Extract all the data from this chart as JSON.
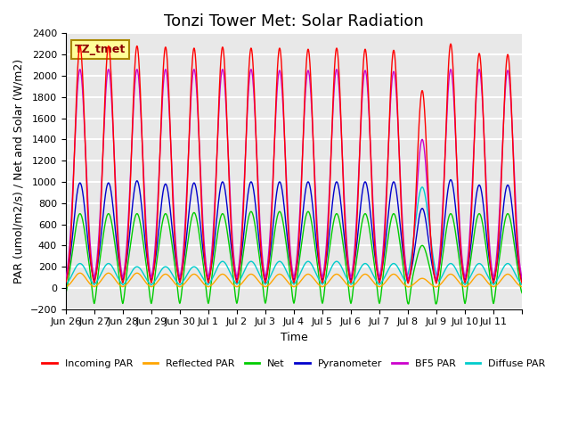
{
  "title": "Tonzi Tower Met: Solar Radiation",
  "ylabel": "PAR (umol/m2/s) / Net and Solar (W/m2)",
  "xlabel": "Time",
  "ylim": [
    -200,
    2400
  ],
  "annotation_text": "TZ_tmet",
  "annotation_color": "#8B0000",
  "annotation_bg": "#FFFF99",
  "background_color": "#E8E8E8",
  "grid_color": "#FFFFFF",
  "series": {
    "incoming_par": {
      "label": "Incoming PAR",
      "color": "#FF0000"
    },
    "reflected_par": {
      "label": "Reflected PAR",
      "color": "#FFA500"
    },
    "net": {
      "label": "Net",
      "color": "#00CC00"
    },
    "pyranometer": {
      "label": "Pyranometer",
      "color": "#0000CC"
    },
    "bf5_par": {
      "label": "BF5 PAR",
      "color": "#CC00CC"
    },
    "diffuse_par": {
      "label": "Diffuse PAR",
      "color": "#00CCCC"
    }
  },
  "n_days": 16,
  "day_labels": [
    "Jun 26",
    "Jun 27",
    "Jun 28",
    "Jun 29",
    "Jun 30",
    "Jul 1",
    "Jul 2",
    "Jul 3",
    "Jul 4",
    "Jul 5",
    "Jul 6",
    "Jul 7",
    "Jul 8",
    "Jul 9",
    "Jul 10",
    "Jul 11",
    ""
  ],
  "peaks_incoming": [
    2280,
    2280,
    2280,
    2270,
    2260,
    2270,
    2260,
    2260,
    2250,
    2260,
    2250,
    2240,
    1860,
    2300,
    2210,
    2200
  ],
  "peaks_bf5": [
    2060,
    2060,
    2060,
    2060,
    2060,
    2060,
    2060,
    2050,
    2050,
    2060,
    2050,
    2040,
    1400,
    2060,
    2060,
    2050
  ],
  "peaks_pyranometer": [
    990,
    990,
    1010,
    980,
    990,
    1000,
    1000,
    1000,
    1000,
    1000,
    1000,
    1000,
    750,
    1020,
    970,
    970
  ],
  "peaks_net": [
    700,
    700,
    700,
    700,
    710,
    700,
    720,
    720,
    720,
    700,
    700,
    700,
    400,
    700,
    700,
    700
  ],
  "peaks_reflected": [
    140,
    140,
    140,
    130,
    130,
    130,
    130,
    130,
    130,
    130,
    130,
    130,
    90,
    130,
    130,
    130
  ],
  "peaks_diffuse": [
    230,
    230,
    200,
    200,
    200,
    250,
    250,
    250,
    250,
    250,
    230,
    230,
    950,
    230,
    230,
    230
  ],
  "trough_net": -100,
  "title_fontsize": 13,
  "axis_fontsize": 9,
  "tick_fontsize": 8,
  "legend_fontsize": 8
}
